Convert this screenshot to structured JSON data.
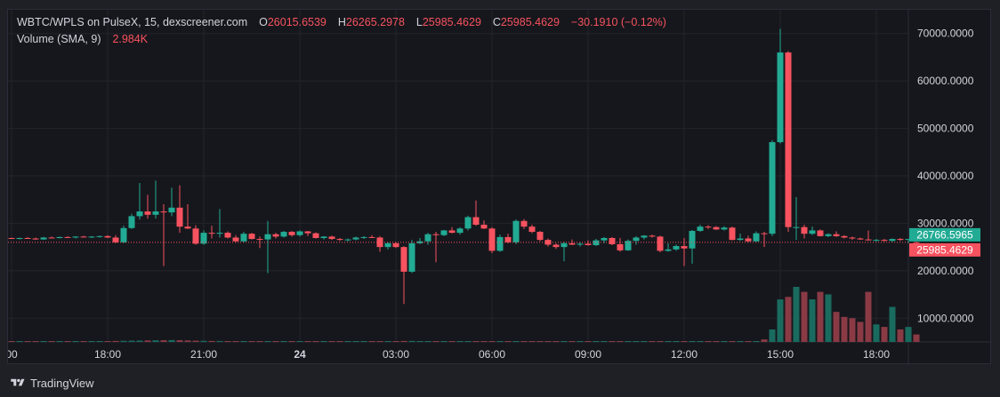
{
  "legend": {
    "symbol": "WBTC/WPLS on PulseX, 15, dexscreener.com",
    "o_label": "O",
    "o_value": "26015.6539",
    "h_label": "H",
    "h_value": "26265.2978",
    "l_label": "L",
    "l_value": "25985.4629",
    "c_label": "C",
    "c_value": "25985.4629",
    "change": "−30.1910 (−0.12%)",
    "volume_label": "Volume (SMA, 9)",
    "volume_value": "2.984K"
  },
  "footer": {
    "brand": "TradingView",
    "logo_icon": "tradingview-logo-icon"
  },
  "colors": {
    "up": "#22ab94",
    "down": "#f7525f",
    "up_vol": "#1a6b5f",
    "down_vol": "#8a3a45",
    "grid": "#22252d",
    "axis_text": "#d1d4dc",
    "background": "#16171c"
  },
  "price_tags": [
    {
      "value": "26766.5965",
      "color": "#22ab94"
    },
    {
      "value": "25985.4629",
      "color": "#f7525f"
    }
  ],
  "chart_data": {
    "type": "candlestick",
    "price_ylim": [
      5000,
      75000
    ],
    "price_ticks": [
      "10000.0000",
      "20000.0000",
      "30000.0000",
      "40000.0000",
      "50000.0000",
      "60000.0000",
      "70000.0000"
    ],
    "x_ticks": [
      {
        "label": "00",
        "index": 0
      },
      {
        "label": "18:00",
        "index": 12
      },
      {
        "label": "21:00",
        "index": 24
      },
      {
        "label": "24",
        "index": 36,
        "bold": true
      },
      {
        "label": "03:00",
        "index": 48
      },
      {
        "label": "06:00",
        "index": 60
      },
      {
        "label": "09:00",
        "index": 72
      },
      {
        "label": "12:00",
        "index": 84
      },
      {
        "label": "15:00",
        "index": 96
      },
      {
        "label": "18:00",
        "index": 108
      }
    ],
    "last_price": 25985.4629,
    "candles": [
      [
        26900,
        27000,
        26700,
        26800,
        300
      ],
      [
        26800,
        27000,
        26600,
        26900,
        250
      ],
      [
        26900,
        27100,
        26700,
        26800,
        200
      ],
      [
        26800,
        27000,
        26500,
        26600,
        300
      ],
      [
        26600,
        27100,
        26500,
        27000,
        280
      ],
      [
        27000,
        27200,
        26800,
        26900,
        260
      ],
      [
        26900,
        27200,
        26800,
        27100,
        240
      ],
      [
        27100,
        27300,
        26900,
        27000,
        230
      ],
      [
        27000,
        27300,
        26800,
        27200,
        220
      ],
      [
        27200,
        27400,
        27000,
        27100,
        230
      ],
      [
        27100,
        27300,
        26900,
        27200,
        250
      ],
      [
        27200,
        27400,
        27000,
        27300,
        260
      ],
      [
        27300,
        27500,
        26900,
        27000,
        300
      ],
      [
        27000,
        27500,
        25800,
        26000,
        400
      ],
      [
        26000,
        29500,
        25800,
        29000,
        450
      ],
      [
        29000,
        32000,
        28800,
        31500,
        500
      ],
      [
        31500,
        38500,
        30800,
        32500,
        550
      ],
      [
        32500,
        36000,
        31000,
        31800,
        600
      ],
      [
        31800,
        39000,
        31000,
        32500,
        650
      ],
      [
        32500,
        34000,
        21000,
        32300,
        700
      ],
      [
        32300,
        37500,
        31500,
        33300,
        750
      ],
      [
        33300,
        38000,
        28000,
        29300,
        700
      ],
      [
        29300,
        34000,
        28800,
        28900,
        600
      ],
      [
        28900,
        29600,
        25500,
        25700,
        500
      ],
      [
        25700,
        28500,
        25500,
        28000,
        450
      ],
      [
        28000,
        29500,
        26800,
        27800,
        400
      ],
      [
        27800,
        33000,
        27000,
        28000,
        380
      ],
      [
        28000,
        28300,
        26800,
        27000,
        360
      ],
      [
        27000,
        27500,
        26000,
        26200,
        340
      ],
      [
        26200,
        28200,
        26000,
        27800,
        330
      ],
      [
        27800,
        28000,
        26600,
        26700,
        320
      ],
      [
        26700,
        27200,
        24800,
        26600,
        300
      ],
      [
        26600,
        30500,
        19500,
        27700,
        290
      ],
      [
        27700,
        28000,
        26800,
        27200,
        280
      ],
      [
        27200,
        28400,
        27000,
        28200,
        270
      ],
      [
        28200,
        28400,
        27200,
        27500,
        260
      ],
      [
        27500,
        28500,
        27200,
        28300,
        250
      ],
      [
        28300,
        28400,
        27300,
        27900,
        240
      ],
      [
        27900,
        28100,
        26800,
        26900,
        230
      ],
      [
        26900,
        27300,
        26600,
        27200,
        220
      ],
      [
        27200,
        27400,
        26500,
        26700,
        210
      ],
      [
        26700,
        26900,
        26300,
        26500,
        200
      ],
      [
        26500,
        26800,
        26200,
        26600,
        200
      ],
      [
        26600,
        27200,
        26400,
        27000,
        200
      ],
      [
        27000,
        27300,
        26700,
        27100,
        200
      ],
      [
        27100,
        27500,
        26900,
        27000,
        200
      ],
      [
        27000,
        27300,
        24000,
        25000,
        300
      ],
      [
        25000,
        26000,
        24500,
        25800,
        300
      ],
      [
        25800,
        26000,
        24800,
        25000,
        350
      ],
      [
        25000,
        25200,
        13000,
        19800,
        400
      ],
      [
        19800,
        26500,
        19500,
        25800,
        400
      ],
      [
        25800,
        26900,
        25600,
        26200,
        350
      ],
      [
        26200,
        28000,
        25500,
        27700,
        320
      ],
      [
        27700,
        28200,
        21800,
        27500,
        300
      ],
      [
        27500,
        28600,
        27300,
        28500,
        280
      ],
      [
        28500,
        29200,
        27900,
        28000,
        280
      ],
      [
        28000,
        29200,
        27600,
        28900,
        280
      ],
      [
        28900,
        31600,
        28500,
        31300,
        290
      ],
      [
        31300,
        34800,
        29500,
        29700,
        300
      ],
      [
        29700,
        30600,
        28800,
        28900,
        310
      ],
      [
        28900,
        29200,
        23700,
        24200,
        320
      ],
      [
        24200,
        27600,
        24000,
        27100,
        330
      ],
      [
        27100,
        27800,
        25800,
        26000,
        320
      ],
      [
        26000,
        30800,
        25600,
        30500,
        300
      ],
      [
        30500,
        30900,
        28800,
        29300,
        290
      ],
      [
        29300,
        29700,
        27900,
        28200,
        280
      ],
      [
        28200,
        28400,
        26200,
        26500,
        270
      ],
      [
        26500,
        26800,
        25100,
        25500,
        260
      ],
      [
        25500,
        25800,
        24600,
        25000,
        250
      ],
      [
        25000,
        26100,
        22000,
        25800,
        250
      ],
      [
        25800,
        26600,
        25400,
        25500,
        240
      ],
      [
        25500,
        26000,
        25100,
        25700,
        240
      ],
      [
        25700,
        26400,
        25300,
        25400,
        240
      ],
      [
        25400,
        26700,
        25200,
        26400,
        240
      ],
      [
        26400,
        27100,
        25800,
        26900,
        240
      ],
      [
        26900,
        27100,
        25400,
        25600,
        240
      ],
      [
        25600,
        26900,
        24000,
        24300,
        240
      ],
      [
        24300,
        26600,
        24200,
        26300,
        240
      ],
      [
        26300,
        27300,
        25500,
        27000,
        240
      ],
      [
        27000,
        27500,
        26600,
        27400,
        240
      ],
      [
        27400,
        27600,
        27000,
        27200,
        240
      ],
      [
        27200,
        27400,
        23900,
        24200,
        240
      ],
      [
        24200,
        25800,
        24000,
        24500,
        240
      ],
      [
        24500,
        25500,
        24200,
        25200,
        240
      ],
      [
        25200,
        26900,
        21000,
        24700,
        240
      ],
      [
        24700,
        28600,
        21500,
        28400,
        240
      ],
      [
        28400,
        29700,
        28200,
        29300,
        240
      ],
      [
        29300,
        29600,
        28800,
        29200,
        240
      ],
      [
        29200,
        29400,
        28600,
        28700,
        240
      ],
      [
        28700,
        29400,
        28500,
        29100,
        240
      ],
      [
        29100,
        29300,
        26400,
        26500,
        250
      ],
      [
        26500,
        27800,
        26300,
        26800,
        250
      ],
      [
        26800,
        27400,
        26000,
        26200,
        250
      ],
      [
        26200,
        28300,
        26100,
        27900,
        300
      ],
      [
        27900,
        28200,
        25000,
        27800,
        1000
      ],
      [
        27800,
        47500,
        27300,
        47100,
        5000
      ],
      [
        47100,
        71000,
        46800,
        66000,
        17000
      ],
      [
        66000,
        66300,
        28200,
        29200,
        18000
      ],
      [
        29200,
        35500,
        26500,
        29200,
        22000
      ],
      [
        29200,
        29700,
        26800,
        27800,
        20000
      ],
      [
        27800,
        29300,
        27500,
        28500,
        17000
      ],
      [
        28500,
        28700,
        27200,
        27300,
        20000
      ],
      [
        27300,
        27900,
        27100,
        27700,
        19000
      ],
      [
        27700,
        28300,
        27100,
        27300,
        12000
      ],
      [
        27300,
        27500,
        26800,
        27000,
        10000
      ],
      [
        27000,
        27200,
        26500,
        26800,
        9500
      ],
      [
        26800,
        27000,
        26500,
        26600,
        8000
      ],
      [
        26600,
        28500,
        26400,
        26400,
        20000
      ],
      [
        26400,
        26700,
        26200,
        26500,
        7000
      ],
      [
        26500,
        26700,
        26200,
        26300,
        6000
      ],
      [
        26300,
        26800,
        26100,
        26700,
        14000
      ],
      [
        26700,
        26900,
        26300,
        26500,
        5000
      ],
      [
        26500,
        26700,
        25800,
        26700,
        6000
      ],
      [
        26015,
        26265,
        25985,
        25985,
        2984
      ]
    ]
  }
}
